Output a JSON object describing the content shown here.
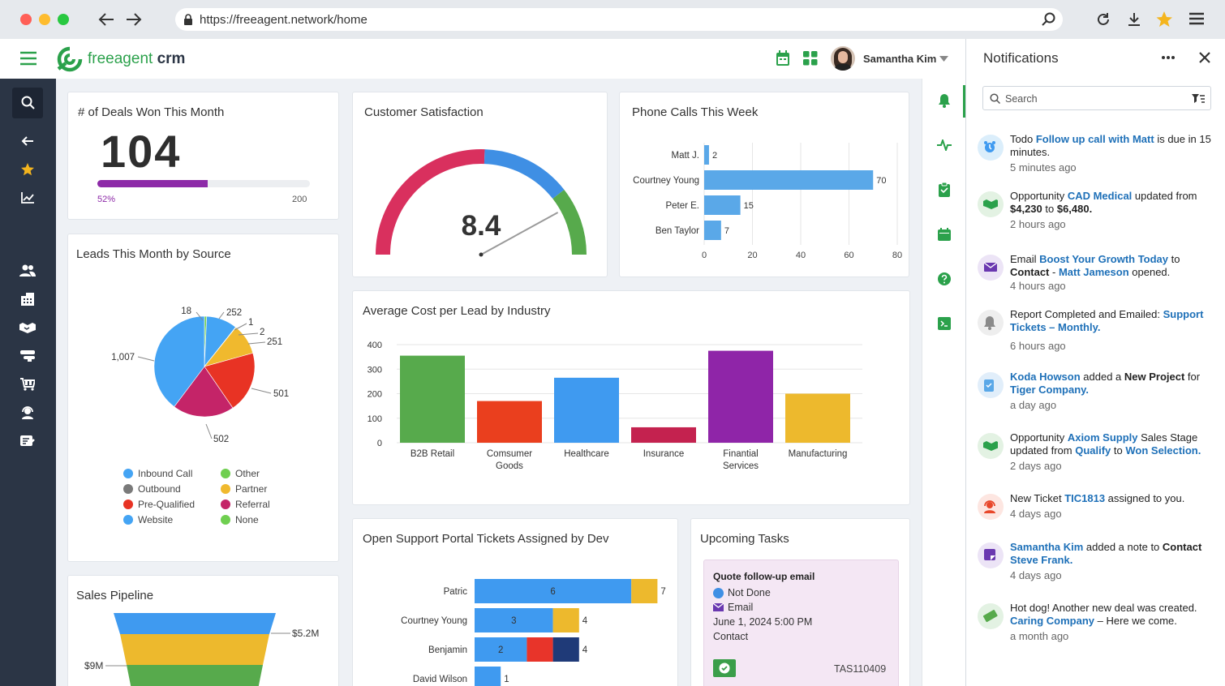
{
  "browser": {
    "url": "https://freeagent.network/home"
  },
  "app": {
    "logo_text_1": "freeagent",
    "logo_text_2": " crm",
    "user_name": "Samantha Kim"
  },
  "deals": {
    "title": "# of Deals Won This Month",
    "value": "104",
    "progress_label": "52%",
    "progress": 0.52,
    "target": "200"
  },
  "csat": {
    "title": "Customer Satisfaction",
    "value": "8.4",
    "score": 8.4
  },
  "leads": {
    "title": "Leads This Month by Source"
  },
  "pipeline": {
    "title": "Sales Pipeline"
  },
  "cost": {
    "title": "Average Cost per Lead by Industry"
  },
  "tickets": {
    "title": "Open Support Portal Tickets Assigned by Dev"
  },
  "tasks": {
    "title": "Upcoming Tasks",
    "card": {
      "name": "Quote follow-up email",
      "status": "Not Done",
      "type": "Email",
      "date": "June 1, 2024 5:00 PM",
      "related": "Contact",
      "id": "TAS110409"
    }
  },
  "notifications": {
    "title": "Notifications",
    "search_placeholder": "Search",
    "items": [
      {
        "parts": [
          [
            "Todo ",
            ""
          ],
          [
            "Follow up call with Matt",
            "lnk"
          ],
          [
            " is due in 15 minutes.",
            ""
          ]
        ],
        "time": "5 minutes ago",
        "icon": "alarm-clock-icon"
      },
      {
        "parts": [
          [
            "Opportunity ",
            ""
          ],
          [
            "CAD Medical",
            "lnk"
          ],
          [
            " updated from ",
            ""
          ],
          [
            "$4,230",
            "b"
          ],
          [
            " to ",
            ""
          ],
          [
            "$6,480.",
            "b"
          ]
        ],
        "time": "2 hours ago",
        "icon": "handshake-icon"
      },
      {
        "parts": [
          [
            "Email ",
            ""
          ],
          [
            "Boost Your Growth Today",
            "lnk"
          ],
          [
            " to ",
            ""
          ],
          [
            "Contact",
            "b"
          ],
          [
            " - ",
            ""
          ],
          [
            "Matt Jameson",
            "lnk"
          ],
          [
            " opened.",
            ""
          ]
        ],
        "time": "4 hours ago",
        "icon": "envelope-icon"
      },
      {
        "parts": [
          [
            "Report Completed and Emailed: ",
            ""
          ],
          [
            "Support Tickets – Monthly.",
            "lnk"
          ]
        ],
        "time": "6 hours ago",
        "icon": "bell-icon"
      },
      {
        "parts": [
          [
            "Koda Howson",
            "lnk"
          ],
          [
            " added a ",
            ""
          ],
          [
            "New Project",
            "b"
          ],
          [
            " for ",
            ""
          ],
          [
            "Tiger Company.",
            "lnk"
          ]
        ],
        "time": "a day ago",
        "icon": "clipboard-icon"
      },
      {
        "parts": [
          [
            "Opportunity ",
            ""
          ],
          [
            "Axiom Supply",
            "lnk"
          ],
          [
            " Sales Stage updated from ",
            ""
          ],
          [
            "Qualify",
            "lnk"
          ],
          [
            " to ",
            ""
          ],
          [
            "Won Selection.",
            "lnk"
          ]
        ],
        "time": "2 days ago",
        "icon": "handshake-icon"
      },
      {
        "parts": [
          [
            "New Ticket ",
            ""
          ],
          [
            "TIC1813",
            "lnk"
          ],
          [
            " assigned to you.",
            ""
          ]
        ],
        "time": "4 days ago",
        "icon": "support-agent-icon"
      },
      {
        "parts": [
          [
            "Samantha Kim",
            "lnk"
          ],
          [
            " added a note to ",
            ""
          ],
          [
            "Contact",
            "b"
          ],
          [
            " ",
            ""
          ],
          [
            "Steve Frank.",
            "lnk"
          ]
        ],
        "time": "4 days ago",
        "icon": "note-icon"
      },
      {
        "parts": [
          [
            "Hot dog! Another new deal was created. ",
            ""
          ],
          [
            "Caring Company",
            "lnk"
          ],
          [
            " – Here we come.",
            ""
          ]
        ],
        "time": "a month ago",
        "icon": "money-icon"
      }
    ]
  },
  "chart_data": [
    {
      "type": "bar",
      "orientation": "horizontal",
      "title": "Phone Calls This Week",
      "categories": [
        "Matt J.",
        "Courtney Young",
        "Peter E.",
        "Ben Taylor"
      ],
      "values": [
        2,
        70,
        15,
        7
      ],
      "xticks": [
        "0",
        "20",
        "40",
        "60",
        "80"
      ],
      "xlim": [
        0,
        80
      ],
      "color": "#5aa8e8",
      "grid": true
    },
    {
      "type": "pie",
      "title": "Leads This Month by Source",
      "slices": [
        {
          "label": "Inbound Call",
          "value": 1007,
          "color": "#44a4f4"
        },
        {
          "label": "Other",
          "value": 18,
          "color": "#6fcf50"
        },
        {
          "label": "Partner",
          "value": 252,
          "color": "#f0b92e"
        },
        {
          "label": "Outbound",
          "value": 1,
          "color": "#7a7a7a"
        },
        {
          "label": "Pre-Qualified",
          "value": 2,
          "color": "#ff8f00"
        },
        {
          "label": "Website",
          "value": 251,
          "color": "#2e8be0"
        },
        {
          "label": "Referral",
          "value": 502,
          "color": "#c42468"
        },
        {
          "label": "None",
          "value": 501,
          "color": "#e83324"
        }
      ],
      "pie_order": [
        {
          "value": 18,
          "color": "#6fcf50",
          "label": "18"
        },
        {
          "value": 252,
          "color": "#44a4f4",
          "label": "252"
        },
        {
          "value": 1,
          "color": "#7a7a7a",
          "label": "1"
        },
        {
          "value": 2,
          "color": "#ff8f00",
          "label": "2"
        },
        {
          "value": 251,
          "color": "#f0b92e",
          "label": "251"
        },
        {
          "value": 501,
          "color": "#e83324",
          "label": "501"
        },
        {
          "value": 502,
          "color": "#c42468",
          "label": "502"
        },
        {
          "value": 1007,
          "color": "#44a4f4",
          "label": "1,007"
        }
      ],
      "legend": [
        {
          "label": "Inbound Call",
          "color": "#44a4f4"
        },
        {
          "label": "Other",
          "color": "#6fcf50"
        },
        {
          "label": "Outbound",
          "color": "#7a7a7a"
        },
        {
          "label": "Partner",
          "color": "#f0b92e"
        },
        {
          "label": "Pre-Qualified",
          "color": "#e83324"
        },
        {
          "label": "Referral",
          "color": "#c42468"
        },
        {
          "label": "Website",
          "color": "#44a4f4"
        },
        {
          "label": "None",
          "color": "#6fcf50"
        }
      ]
    },
    {
      "type": "bar",
      "title": "Average Cost per Lead by Industry",
      "categories": [
        "B2B Retail",
        "Comsumer Goods",
        "Healthcare",
        "Insurance",
        "Finantial Services",
        "Manufacturing"
      ],
      "category_lines": [
        [
          "B2B Retail"
        ],
        [
          "Comsumer",
          "Goods"
        ],
        [
          "Healthcare"
        ],
        [
          "Insurance"
        ],
        [
          "Finantial",
          "Services"
        ],
        [
          "Manufacturing"
        ]
      ],
      "values": [
        355,
        170,
        265,
        63,
        375,
        200
      ],
      "colors": [
        "#57aa4c",
        "#ea3f1e",
        "#3f9af0",
        "#c4224f",
        "#8f25a8",
        "#edb92d"
      ],
      "yticks": [
        "0",
        "100",
        "200",
        "300",
        "400"
      ],
      "ylim": [
        0,
        400
      ]
    },
    {
      "type": "bar",
      "orientation": "horizontal",
      "stacked": true,
      "title": "Open Support Portal Tickets Assigned by Dev",
      "categories": [
        "Patric",
        "Courtney Young",
        "Benjamin",
        "David Wilson"
      ],
      "totals": [
        7,
        4,
        4,
        1
      ],
      "segments": [
        [
          {
            "value": 6,
            "color": "#3f9af0",
            "label": "6"
          },
          {
            "value": 1,
            "color": "#edb92d",
            "label": ""
          }
        ],
        [
          {
            "value": 3,
            "color": "#3f9af0",
            "label": "3"
          },
          {
            "value": 1,
            "color": "#edb92d",
            "label": ""
          }
        ],
        [
          {
            "value": 2,
            "color": "#3f9af0",
            "label": "2"
          },
          {
            "value": 1,
            "color": "#e8342a",
            "label": ""
          },
          {
            "value": 1,
            "color": "#1f3a78",
            "label": ""
          }
        ],
        [
          {
            "value": 1,
            "color": "#3f9af0",
            "label": ""
          }
        ]
      ]
    },
    {
      "type": "funnel",
      "title": "Sales Pipeline",
      "labels": [
        "$5.2M",
        "$9M"
      ],
      "colors": [
        "#3f9af0",
        "#edb92d",
        "#57aa4c"
      ]
    }
  ]
}
